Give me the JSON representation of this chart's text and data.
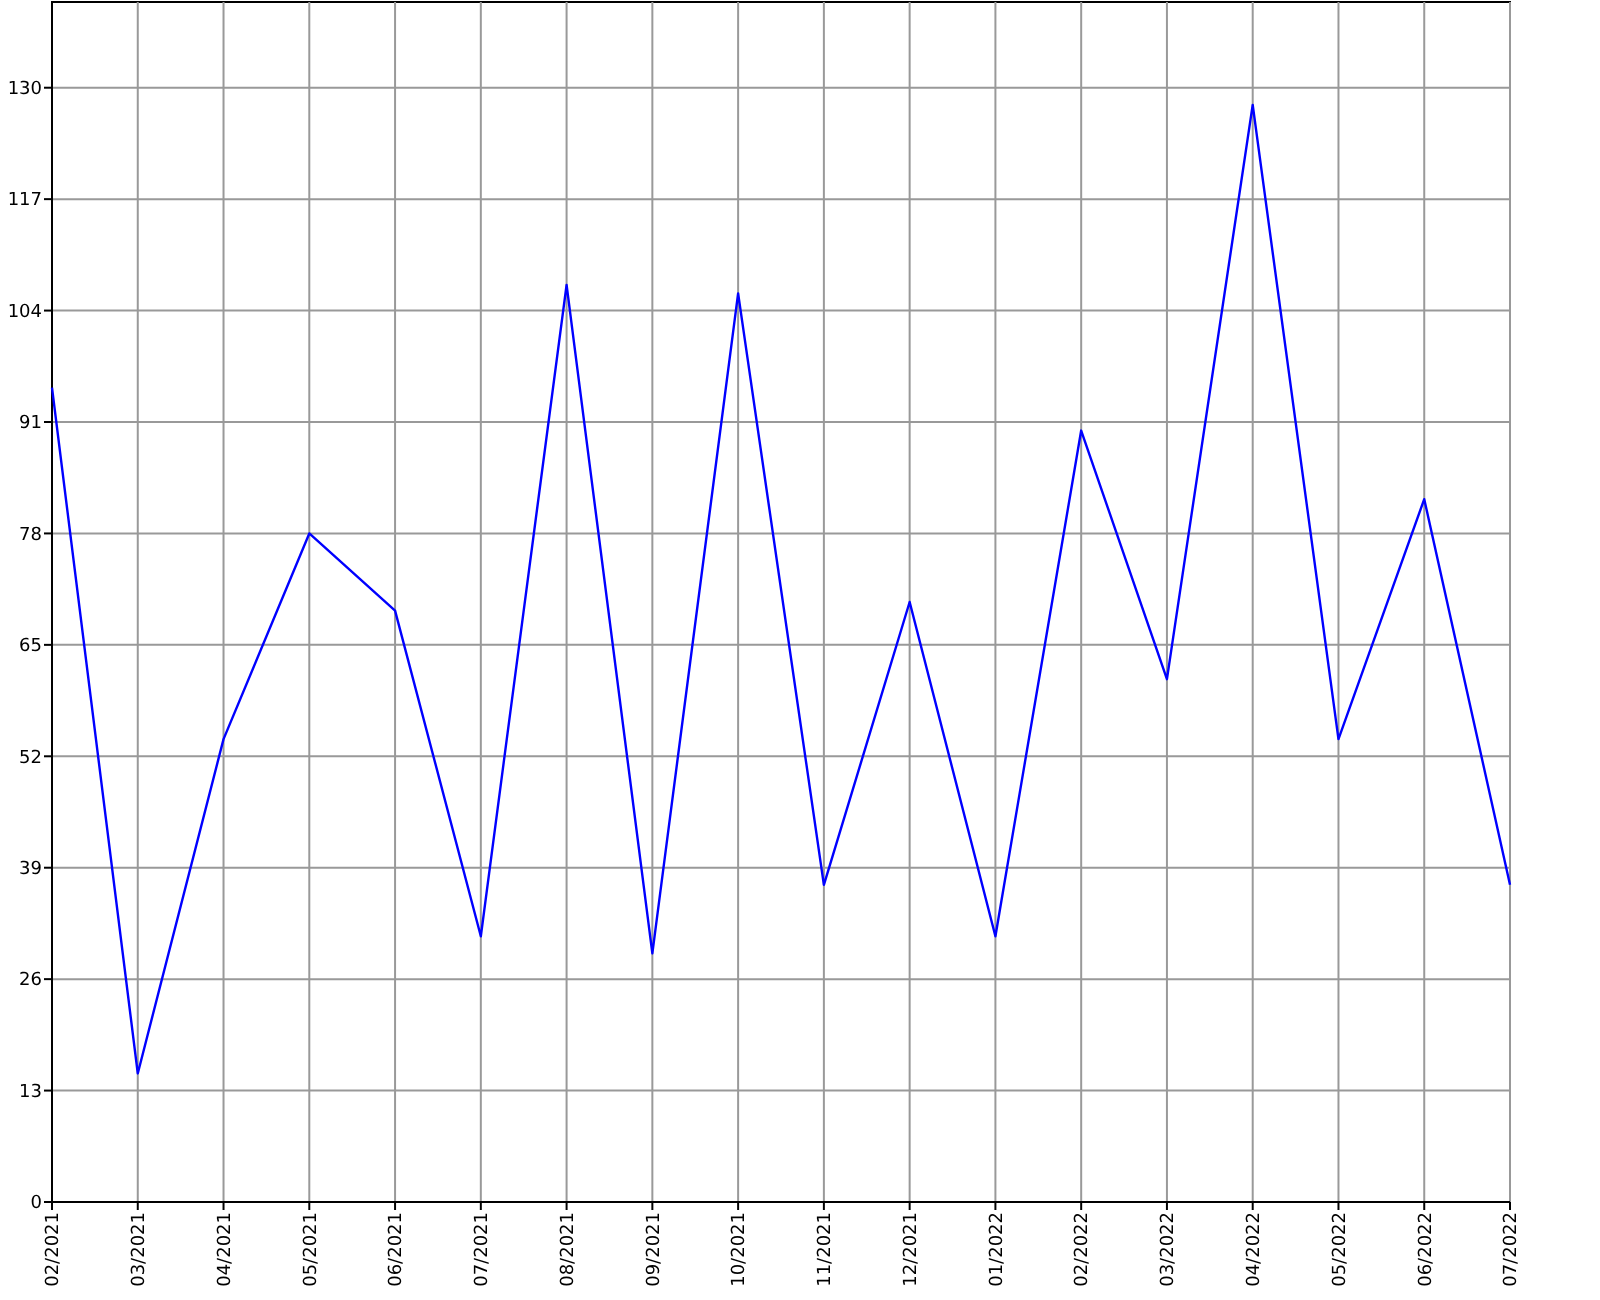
{
  "chart_data": {
    "type": "line",
    "categories": [
      "02/2021",
      "03/2021",
      "04/2021",
      "05/2021",
      "06/2021",
      "07/2021",
      "08/2021",
      "09/2021",
      "10/2021",
      "11/2021",
      "12/2021",
      "01/2022",
      "02/2022",
      "03/2022",
      "04/2022",
      "05/2022",
      "06/2022",
      "07/2022"
    ],
    "series": [
      {
        "color": "#0000ff",
        "values": [
          95,
          15,
          54,
          78,
          69,
          31,
          107,
          29,
          106,
          37,
          70,
          31,
          90,
          61,
          128,
          54,
          82,
          37
        ]
      }
    ],
    "ylim": [
      0,
      140
    ],
    "yticks": [
      0,
      13,
      26,
      39,
      52,
      65,
      78,
      91,
      104,
      117,
      130
    ],
    "grid": true,
    "marker": "none",
    "line_style": "solid"
  }
}
